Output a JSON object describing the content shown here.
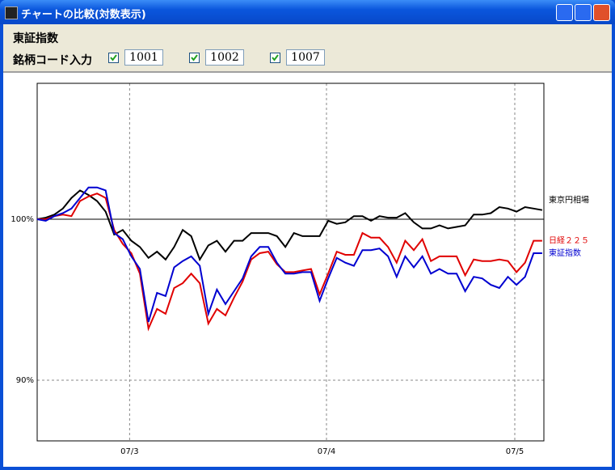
{
  "window": {
    "title": "チャートの比較(対数表示)"
  },
  "header": {
    "label": "東証指数"
  },
  "input_row": {
    "label": "銘柄コード入力",
    "codes": [
      {
        "checked": true,
        "value": "1001"
      },
      {
        "checked": true,
        "value": "1002"
      },
      {
        "checked": true,
        "value": "1007"
      }
    ]
  },
  "chart_data": {
    "type": "line",
    "log_scale": true,
    "reference_line": 100,
    "x": [
      0,
      1,
      2,
      3,
      4,
      5,
      6,
      7,
      8,
      9,
      10,
      11,
      12,
      13,
      14,
      15,
      16,
      17,
      18,
      19,
      20,
      21,
      22,
      23,
      24,
      25,
      26,
      27,
      28,
      29,
      30,
      31,
      32,
      33,
      34,
      35,
      36,
      37,
      38,
      39,
      40,
      41,
      42,
      43,
      44,
      45,
      46,
      47,
      48,
      49,
      50,
      51,
      52,
      53,
      54,
      55,
      56,
      57,
      58,
      59
    ],
    "xlim": [
      0,
      59.2
    ],
    "xticks": [
      {
        "value": 10.8,
        "label": "07/3"
      },
      {
        "value": 33.8,
        "label": "07/4"
      },
      {
        "value": 55.8,
        "label": "07/5"
      }
    ],
    "ylim": [
      86.5,
      109.3
    ],
    "yticks": [
      {
        "value": 90,
        "label": "90%"
      },
      {
        "value": 100,
        "label": "100%"
      }
    ],
    "series": [
      {
        "name": "東京円相場",
        "color": "#000000",
        "values": [
          100.0,
          100.1,
          100.3,
          100.7,
          101.4,
          101.9,
          101.6,
          101.2,
          100.5,
          99.0,
          99.3,
          98.6,
          98.2,
          97.5,
          97.9,
          97.4,
          98.2,
          99.3,
          98.9,
          97.4,
          98.3,
          98.6,
          97.9,
          98.6,
          98.6,
          99.1,
          99.1,
          99.1,
          98.9,
          98.2,
          99.1,
          98.9,
          98.9,
          98.9,
          99.9,
          99.7,
          99.8,
          100.2,
          100.2,
          99.9,
          100.2,
          100.1,
          100.1,
          100.4,
          99.8,
          99.4,
          99.4,
          99.6,
          99.4,
          99.5,
          99.6,
          100.3,
          100.3,
          100.4,
          100.8,
          100.7,
          100.5,
          100.8,
          100.7,
          100.6
        ]
      },
      {
        "name": "日経２２５",
        "color": "#e00000",
        "values": [
          100.0,
          100.0,
          100.2,
          100.3,
          100.2,
          101.2,
          101.5,
          101.7,
          101.4,
          99.3,
          98.4,
          97.8,
          96.5,
          93.1,
          94.3,
          94.0,
          95.6,
          95.9,
          96.5,
          95.9,
          93.4,
          94.3,
          93.9,
          95.0,
          96.0,
          97.4,
          97.8,
          97.9,
          97.1,
          96.6,
          96.6,
          96.7,
          96.8,
          95.2,
          96.5,
          97.9,
          97.7,
          97.7,
          99.1,
          98.8,
          98.8,
          98.2,
          97.2,
          98.6,
          98.0,
          98.7,
          97.3,
          97.6,
          97.6,
          97.6,
          96.4,
          97.4,
          97.3,
          97.3,
          97.4,
          97.3,
          96.6,
          97.2,
          98.6,
          98.6
        ]
      },
      {
        "name": "東証指数",
        "color": "#0000d0",
        "values": [
          100.0,
          99.9,
          100.2,
          100.4,
          100.7,
          101.4,
          102.1,
          102.1,
          101.9,
          99.1,
          98.7,
          97.6,
          96.8,
          93.5,
          95.3,
          95.1,
          96.9,
          97.3,
          97.6,
          97.0,
          94.0,
          95.5,
          94.6,
          95.4,
          96.2,
          97.6,
          98.2,
          98.2,
          97.2,
          96.5,
          96.5,
          96.6,
          96.6,
          94.8,
          96.2,
          97.5,
          97.2,
          97.0,
          98.0,
          98.0,
          98.1,
          97.6,
          96.3,
          97.6,
          96.9,
          97.6,
          96.5,
          96.8,
          96.5,
          96.5,
          95.4,
          96.3,
          96.2,
          95.8,
          95.6,
          96.3,
          95.8,
          96.3,
          97.8,
          97.8
        ]
      }
    ]
  }
}
